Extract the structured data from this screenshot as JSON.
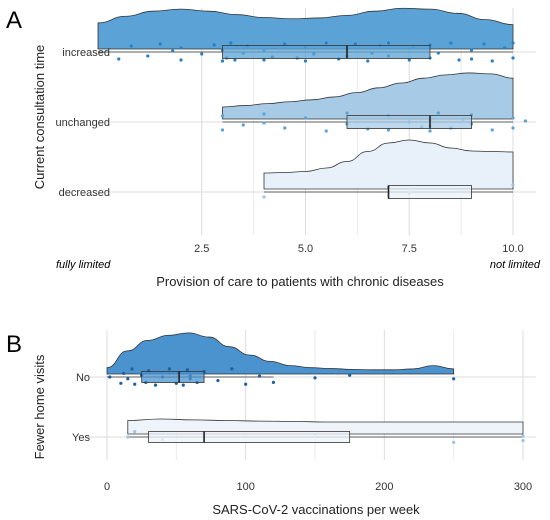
{
  "chart_data": [
    {
      "panel": "A",
      "type": "raincloud",
      "xlabel": "Provision of care to patients with chronic diseases",
      "ylabel": "Current consultation time",
      "xlim": [
        0,
        10
      ],
      "xticks": [
        2.5,
        5.0,
        7.5,
        10.0
      ],
      "xtick_labels": [
        "2.5",
        "5.0",
        "7.5",
        "10.0"
      ],
      "corner_labels": {
        "left": "fully limited",
        "right": "not limited"
      },
      "grid": true,
      "categories": [
        "increased",
        "unchanged",
        "decreased"
      ],
      "series": [
        {
          "category": "increased",
          "color": "#2a7fc1",
          "density_fill": "#5ba3d6",
          "density_range": [
            0,
            10
          ],
          "density": [
            0.62,
            0.78,
            0.9,
            0.95,
            0.9,
            0.82,
            0.75,
            0.72,
            0.74,
            0.8,
            0.9,
            0.97,
            0.95,
            0.85,
            0.7,
            0.58
          ],
          "box": {
            "min": 0,
            "q1": 3,
            "median": 6,
            "q3": 8,
            "max": 10
          },
          "points": [
            {
              "x": 0.5,
              "y": 0.35
            },
            {
              "x": 0.8,
              "y": -0.3
            },
            {
              "x": 1.2,
              "y": 0.2
            },
            {
              "x": 1.5,
              "y": -0.4
            },
            {
              "x": 2.0,
              "y": 0.4
            },
            {
              "x": 2.0,
              "y": -0.2
            },
            {
              "x": 2.5,
              "y": 0.1
            },
            {
              "x": 2.8,
              "y": -0.35
            },
            {
              "x": 3.0,
              "y": 0.45
            },
            {
              "x": 3.0,
              "y": -0.1
            },
            {
              "x": 3.1,
              "y": 0.3
            },
            {
              "x": 3.2,
              "y": -0.45
            },
            {
              "x": 3.3,
              "y": 0.4
            },
            {
              "x": 3.5,
              "y": 0.05
            },
            {
              "x": 3.6,
              "y": -0.3
            },
            {
              "x": 4.0,
              "y": 0.4
            },
            {
              "x": 4.0,
              "y": -0.1
            },
            {
              "x": 4.2,
              "y": 0.25
            },
            {
              "x": 4.5,
              "y": -0.4
            },
            {
              "x": 4.8,
              "y": 0.3
            },
            {
              "x": 5.0,
              "y": 0.45
            },
            {
              "x": 5.0,
              "y": -0.25
            },
            {
              "x": 5.2,
              "y": 0.1
            },
            {
              "x": 5.5,
              "y": -0.45
            },
            {
              "x": 5.8,
              "y": 0.35
            },
            {
              "x": 6.0,
              "y": -0.15
            },
            {
              "x": 6.0,
              "y": 0.2
            },
            {
              "x": 6.2,
              "y": -0.4
            },
            {
              "x": 6.5,
              "y": 0.45
            },
            {
              "x": 6.8,
              "y": -0.3
            },
            {
              "x": 7.0,
              "y": 0.2
            },
            {
              "x": 7.0,
              "y": -0.45
            },
            {
              "x": 7.5,
              "y": 0.4
            },
            {
              "x": 7.6,
              "y": -0.2
            },
            {
              "x": 8.0,
              "y": 0.3
            },
            {
              "x": 8.0,
              "y": -0.35
            },
            {
              "x": 8.2,
              "y": 0.05
            },
            {
              "x": 8.5,
              "y": -0.45
            },
            {
              "x": 8.7,
              "y": 0.4
            },
            {
              "x": 9.0,
              "y": -0.1
            },
            {
              "x": 9.0,
              "y": 0.35
            },
            {
              "x": 9.3,
              "y": -0.4
            },
            {
              "x": 9.5,
              "y": 0.45
            },
            {
              "x": 9.8,
              "y": -0.2
            },
            {
              "x": 10.0,
              "y": 0.3
            },
            {
              "x": 10.0,
              "y": -0.45
            },
            {
              "x": 1.8,
              "y": -0.05
            },
            {
              "x": 6.6,
              "y": 0.05
            }
          ]
        },
        {
          "category": "unchanged",
          "color": "#5ba3d6",
          "density_fill": "#a7cbe6",
          "density_range": [
            3,
            10
          ],
          "density": [
            0.25,
            0.28,
            0.32,
            0.36,
            0.4,
            0.46,
            0.55,
            0.65,
            0.75,
            0.85,
            0.92,
            0.96,
            0.94,
            0.85
          ],
          "box": {
            "min": 3,
            "q1": 6,
            "median": 8,
            "q3": 9,
            "max": 10
          },
          "points": [
            {
              "x": 3.0,
              "y": 0.4
            },
            {
              "x": 3.0,
              "y": -0.3
            },
            {
              "x": 3.5,
              "y": 0.15
            },
            {
              "x": 4.0,
              "y": -0.4
            },
            {
              "x": 4.5,
              "y": 0.3
            },
            {
              "x": 5.0,
              "y": -0.2
            },
            {
              "x": 5.5,
              "y": 0.45
            },
            {
              "x": 6.0,
              "y": -0.45
            },
            {
              "x": 6.0,
              "y": 0.1
            },
            {
              "x": 6.5,
              "y": 0.35
            },
            {
              "x": 7.0,
              "y": -0.3
            },
            {
              "x": 7.0,
              "y": 0.4
            },
            {
              "x": 7.5,
              "y": 0.0
            },
            {
              "x": 8.0,
              "y": 0.45
            },
            {
              "x": 8.0,
              "y": -0.1
            },
            {
              "x": 8.0,
              "y": 0.2
            },
            {
              "x": 8.2,
              "y": -0.45
            },
            {
              "x": 8.5,
              "y": 0.3
            },
            {
              "x": 9.0,
              "y": -0.35
            },
            {
              "x": 9.0,
              "y": 0.1
            },
            {
              "x": 9.5,
              "y": 0.4
            },
            {
              "x": 10.0,
              "y": -0.2
            },
            {
              "x": 10.0,
              "y": 0.3
            },
            {
              "x": 10.3,
              "y": -0.05
            },
            {
              "x": 4.0,
              "y": 0.05
            },
            {
              "x": 7.8,
              "y": 0.25
            },
            {
              "x": 8.8,
              "y": -0.15
            }
          ]
        },
        {
          "category": "decreased",
          "color": "#9fc4e3",
          "density_fill": "#e8f1fa",
          "density_range": [
            4,
            10
          ],
          "density": [
            0.32,
            0.33,
            0.35,
            0.42,
            0.55,
            0.75,
            0.92,
            0.98,
            0.92,
            0.82,
            0.76,
            0.75,
            0.74
          ],
          "box": {
            "min": 4,
            "q1": 7,
            "median": 7,
            "q3": 9,
            "max": 10
          },
          "points": [
            {
              "x": 4.0,
              "y": 0.25
            },
            {
              "x": 7.0,
              "y": -0.25
            },
            {
              "x": 7.5,
              "y": 0.05
            },
            {
              "x": 10.0,
              "y": -0.35
            }
          ]
        }
      ]
    },
    {
      "panel": "B",
      "type": "raincloud",
      "xlabel": "SARS-CoV-2 vaccinations per week",
      "ylabel": "Fewer home visits",
      "xlim": [
        0,
        300
      ],
      "xticks": [
        0,
        100,
        200,
        300
      ],
      "xtick_labels": [
        "0",
        "100",
        "200",
        "300"
      ],
      "grid": true,
      "categories": [
        "No",
        "Yes"
      ],
      "series": [
        {
          "category": "No",
          "color": "#1f5f9e",
          "density_fill": "#4a93cf",
          "density_range": [
            0,
            250
          ],
          "density": [
            0.15,
            0.55,
            0.8,
            0.92,
            0.98,
            0.88,
            0.65,
            0.45,
            0.3,
            0.2,
            0.15,
            0.13,
            0.11,
            0.1,
            0.1,
            0.12,
            0.2,
            0.12
          ],
          "box": {
            "min": 0,
            "q1": 25,
            "median": 52,
            "q3": 70,
            "max": 120
          },
          "points": [
            {
              "x": 2,
              "y": 0.0
            },
            {
              "x": 10,
              "y": 0.35
            },
            {
              "x": 12,
              "y": -0.2
            },
            {
              "x": 15,
              "y": 0.1
            },
            {
              "x": 18,
              "y": -0.45
            },
            {
              "x": 20,
              "y": 0.4
            },
            {
              "x": 25,
              "y": -0.1
            },
            {
              "x": 28,
              "y": 0.3
            },
            {
              "x": 30,
              "y": -0.35
            },
            {
              "x": 35,
              "y": 0.45
            },
            {
              "x": 40,
              "y": 0.0
            },
            {
              "x": 45,
              "y": -0.45
            },
            {
              "x": 50,
              "y": 0.35
            },
            {
              "x": 52,
              "y": -0.2
            },
            {
              "x": 55,
              "y": 0.45
            },
            {
              "x": 58,
              "y": -0.4
            },
            {
              "x": 60,
              "y": 0.1
            },
            {
              "x": 60,
              "y": -0.05
            },
            {
              "x": 65,
              "y": 0.3
            },
            {
              "x": 70,
              "y": -0.3
            },
            {
              "x": 80,
              "y": 0.2
            },
            {
              "x": 90,
              "y": -0.45
            },
            {
              "x": 100,
              "y": 0.4
            },
            {
              "x": 110,
              "y": -0.05
            },
            {
              "x": 120,
              "y": 0.3
            },
            {
              "x": 150,
              "y": 0.05
            },
            {
              "x": 175,
              "y": -0.1
            },
            {
              "x": 250,
              "y": 0.1
            }
          ]
        },
        {
          "category": "Yes",
          "color": "#9fc4e3",
          "density_fill": "#eef4fa",
          "density_range": [
            15,
            300
          ],
          "density": [
            0.45,
            0.5,
            0.47,
            0.45,
            0.43,
            0.42,
            0.4,
            0.4,
            0.4,
            0.4,
            0.4,
            0.4,
            0.4
          ],
          "box": {
            "min": 15,
            "q1": 30,
            "median": 70,
            "q3": 175,
            "max": 300
          },
          "points": [
            {
              "x": 15,
              "y": 0.0
            },
            {
              "x": 20,
              "y": -0.3
            },
            {
              "x": 40,
              "y": 0.15
            },
            {
              "x": 70,
              "y": -0.25
            },
            {
              "x": 150,
              "y": 0.0
            },
            {
              "x": 250,
              "y": 0.3
            },
            {
              "x": 300,
              "y": -0.05
            },
            {
              "x": 300,
              "y": 0.2
            }
          ]
        }
      ]
    }
  ]
}
